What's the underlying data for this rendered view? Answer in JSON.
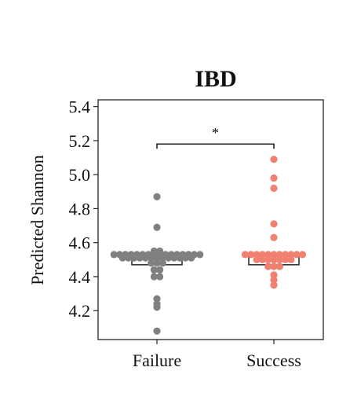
{
  "chart_data": {
    "type": "box-swarm",
    "title": "IBD",
    "xlabel": "",
    "ylabel": "Predicted Shannon",
    "ylim": [
      4.03,
      5.44
    ],
    "yticks": [
      4.2,
      4.4,
      4.6,
      4.8,
      5.0,
      5.2,
      5.4
    ],
    "ytick_labels": [
      "4.2",
      "4.4",
      "4.6",
      "4.8",
      "5.0",
      "5.2",
      "5.4"
    ],
    "categories": [
      "Failure",
      "Success"
    ],
    "significance": {
      "label": "*",
      "y": 5.18
    },
    "grid": false,
    "legend": "none",
    "series": [
      {
        "category": "Failure",
        "color": "#808080",
        "box": {
          "q1": 4.47,
          "median": 4.51,
          "q3": 4.52
        },
        "values": [
          4.53,
          4.53,
          4.53,
          4.53,
          4.53,
          4.53,
          4.53,
          4.53,
          4.53,
          4.53,
          4.53,
          4.53,
          4.53,
          4.53,
          4.53,
          4.53,
          4.55,
          4.55,
          4.51,
          4.51,
          4.51,
          4.51,
          4.51,
          4.51,
          4.51,
          4.51,
          4.51,
          4.51,
          4.51,
          4.51,
          4.51,
          4.48,
          4.48,
          4.48,
          4.44,
          4.44,
          4.4,
          4.4,
          4.87,
          4.69,
          4.27,
          4.24,
          4.22,
          4.08
        ]
      },
      {
        "category": "Success",
        "color": "#F08070",
        "box": {
          "q1": 4.47,
          "median": 4.52,
          "q3": 4.53
        },
        "values": [
          4.53,
          4.53,
          4.53,
          4.53,
          4.53,
          4.53,
          4.53,
          4.53,
          4.53,
          4.53,
          4.53,
          4.5,
          4.5,
          4.5,
          4.5,
          4.5,
          4.5,
          4.5,
          4.46,
          4.46,
          4.46,
          4.41,
          4.38,
          4.35,
          4.63,
          4.71,
          4.92,
          4.98,
          5.09
        ]
      }
    ]
  }
}
